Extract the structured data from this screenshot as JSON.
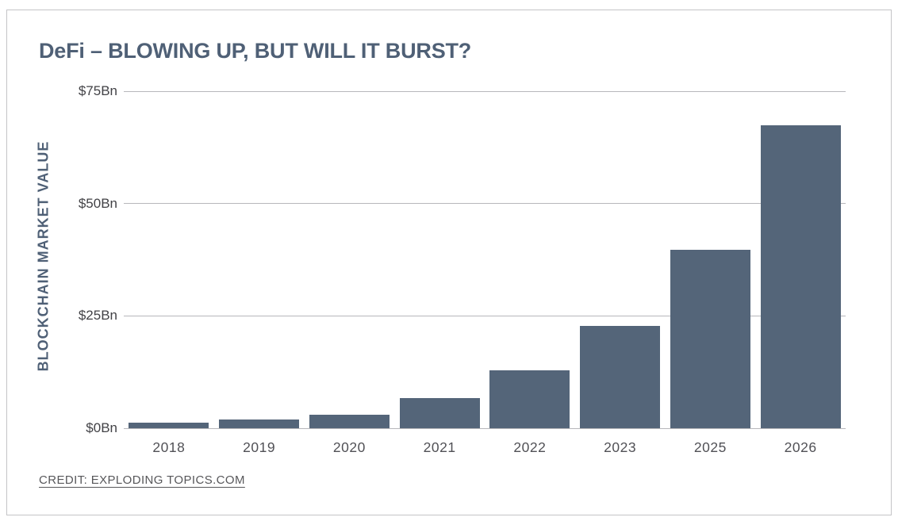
{
  "chart_data": {
    "type": "bar",
    "title": "DeFi – BLOWING UP, BUT WILL IT BURST?",
    "ylabel": "BLOCKCHAIN MARKET VALUE",
    "xlabel": "",
    "unit": "$Bn",
    "categories": [
      "2018",
      "2019",
      "2020",
      "2021",
      "2022",
      "2023",
      "2025",
      "2026"
    ],
    "values": [
      1.2,
      2,
      3,
      6.7,
      12.9,
      22.8,
      39.7,
      67.4
    ],
    "ylim": [
      0,
      75
    ],
    "y_ticks": [
      {
        "label": "$75Bn",
        "value": 75
      },
      {
        "label": "$50Bn",
        "value": 50
      },
      {
        "label": "$25Bn",
        "value": 25
      },
      {
        "label": "$0Bn",
        "value": 0
      }
    ],
    "grid": "horizontal",
    "legend_position": "none",
    "bar_color": "#546579",
    "title_color": "#4f6076",
    "tick_color": "#424246"
  },
  "credit": {
    "label": "CREDIT: EXPLODING TOPICS.COM"
  }
}
